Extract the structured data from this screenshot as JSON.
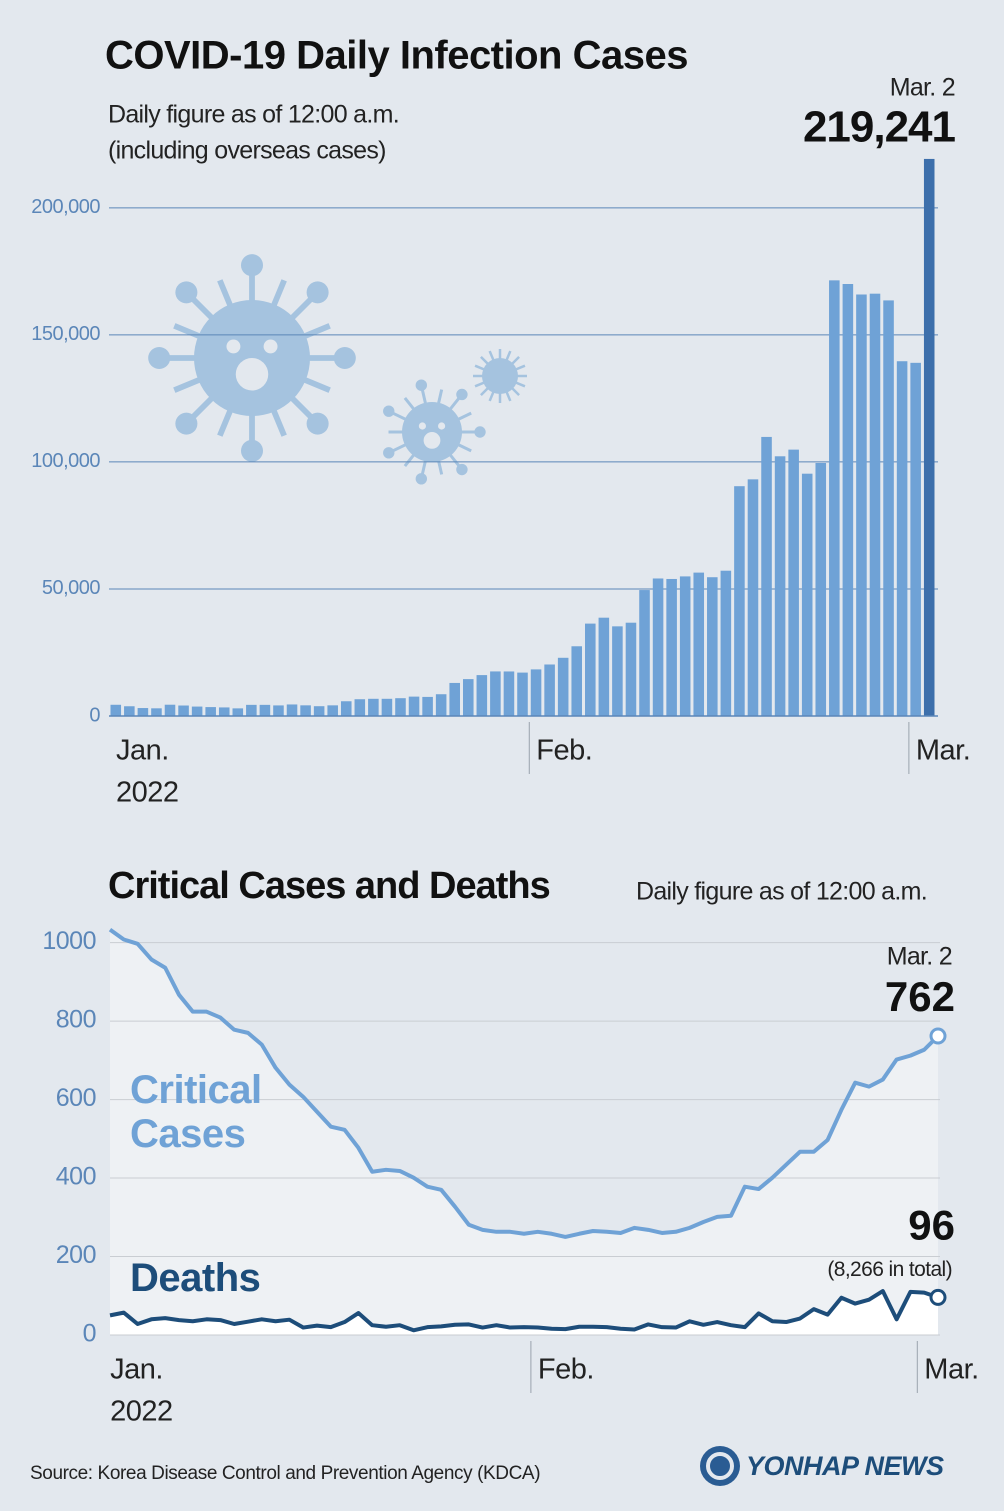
{
  "chart_data": [
    {
      "type": "bar",
      "title": "COVID-19 Daily Infection Cases",
      "subtitle": [
        "Daily figure as of 12:00 a.m.",
        "(including overseas cases)"
      ],
      "date_note": "Mar. 2",
      "categories": [
        "Jan.",
        null,
        null,
        null,
        null,
        null,
        null,
        null,
        null,
        null,
        null,
        null,
        null,
        null,
        null,
        null,
        null,
        null,
        null,
        null,
        null,
        null,
        null,
        null,
        null,
        null,
        null,
        null,
        null,
        null,
        null,
        "Feb.",
        null,
        null,
        null,
        null,
        null,
        null,
        null,
        null,
        null,
        null,
        null,
        null,
        null,
        null,
        null,
        null,
        null,
        null,
        null,
        null,
        null,
        null,
        null,
        null,
        null,
        null,
        null,
        "Mar.",
        null
      ],
      "year": "2022",
      "values": [
        4415,
        3833,
        3129,
        3022,
        4443,
        4126,
        3713,
        3507,
        3376,
        3005,
        4388,
        4385,
        4167,
        4542,
        4197,
        3857,
        4194,
        5804,
        6603,
        6769,
        6767,
        7009,
        7628,
        7513,
        8571,
        13012,
        14518,
        16096,
        17542,
        17528,
        17079,
        18343,
        20270,
        22907,
        27443,
        36362,
        38691,
        35286,
        36719,
        49567,
        54122,
        53926,
        54941,
        56431,
        54619,
        57177,
        90443,
        93135,
        109831,
        102211,
        104829,
        95362,
        99573,
        171452,
        170016,
        165890,
        166209,
        163565,
        139626,
        138993,
        219241
      ],
      "value_labels": [
        null,
        null,
        null,
        null,
        null,
        null,
        null,
        null,
        null,
        null,
        null,
        null,
        null,
        null,
        null,
        null,
        null,
        null,
        null,
        null,
        null,
        null,
        null,
        null,
        null,
        null,
        null,
        null,
        null,
        null,
        null,
        null,
        null,
        null,
        null,
        null,
        null,
        null,
        null,
        null,
        null,
        null,
        null,
        null,
        null,
        null,
        null,
        null,
        null,
        null,
        null,
        null,
        null,
        null,
        null,
        null,
        null,
        null,
        null,
        null,
        "219,241"
      ],
      "color": "#6fa2d6",
      "highlight_color": "#3d6fab",
      "ylim": [
        0,
        220000
      ],
      "yticks": [
        0,
        {
          "value": 50000,
          "label": "50,000"
        },
        {
          "value": 100000,
          "label": "100,000"
        },
        {
          "value": 150000,
          "label": "150,000"
        },
        {
          "value": 200000,
          "label": "200,000"
        }
      ],
      "grid": true
    },
    {
      "type": "line",
      "title": "Critical Cases and Deaths",
      "subtitle": [
        "Daily figure as of 12:00 a.m."
      ],
      "date_note": "Mar. 2",
      "total_note": "(8,266 in total)",
      "categories": [
        "Jan.",
        null,
        null,
        null,
        null,
        null,
        null,
        null,
        null,
        null,
        null,
        null,
        null,
        null,
        null,
        null,
        null,
        null,
        null,
        null,
        null,
        null,
        null,
        null,
        null,
        null,
        null,
        null,
        null,
        null,
        null,
        "Feb.",
        null,
        null,
        null,
        null,
        null,
        null,
        null,
        null,
        null,
        null,
        null,
        null,
        null,
        null,
        null,
        null,
        null,
        null,
        null,
        null,
        null,
        null,
        null,
        null,
        null,
        null,
        null,
        "Mar.",
        null
      ],
      "year": "2022",
      "series": [
        {
          "name": "Critical Cases",
          "color": "#6fa2d6",
          "values": [
            1033,
            1008,
            997,
            957,
            936,
            867,
            824,
            824,
            809,
            778,
            770,
            740,
            681,
            638,
            607,
            569,
            531,
            523,
            477,
            416,
            421,
            418,
            401,
            378,
            370,
            327,
            281,
            268,
            263,
            263,
            258,
            263,
            258,
            250,
            258,
            265,
            263,
            260,
            273,
            268,
            260,
            263,
            273,
            288,
            301,
            304,
            378,
            372,
            401,
            434,
            467,
            467,
            497,
            574,
            643,
            633,
            651,
            702,
            712,
            727,
            762
          ]
        },
        {
          "name": "Deaths",
          "color": "#1d4d7a",
          "values": [
            50,
            57,
            28,
            40,
            43,
            38,
            35,
            40,
            38,
            28,
            34,
            40,
            35,
            39,
            19,
            24,
            20,
            33,
            56,
            25,
            21,
            25,
            12,
            20,
            22,
            26,
            27,
            19,
            25,
            19,
            20,
            19,
            16,
            15,
            21,
            21,
            20,
            16,
            14,
            27,
            20,
            19,
            35,
            26,
            33,
            25,
            20,
            55,
            35,
            33,
            42,
            66,
            52,
            95,
            80,
            90,
            112,
            40,
            110,
            108,
            96
          ]
        }
      ],
      "ylim": [
        0,
        1050
      ],
      "yticks": [
        0,
        200,
        400,
        600,
        800,
        1000
      ],
      "grid": true
    }
  ],
  "source": "Source: Korea Disease Control and Prevention Agency (KDCA)",
  "logo": "YONHAP NEWS"
}
